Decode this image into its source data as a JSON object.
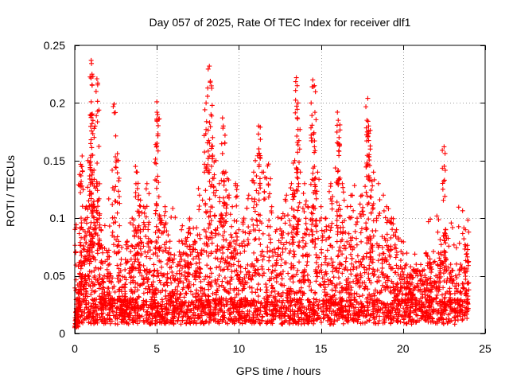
{
  "chart_data": {
    "type": "scatter",
    "title": "Day 057 of 2025, Rate Of TEC Index for receiver dlf1",
    "xlabel": "GPS time / hours",
    "ylabel": "ROTI / TECUs",
    "xlim": [
      0,
      25
    ],
    "ylim": [
      0,
      0.25
    ],
    "x_ticks": [
      "0",
      "5",
      "10",
      "15",
      "20",
      "25"
    ],
    "y_ticks": [
      "0",
      "0.05",
      "0.1",
      "0.15",
      "0.2",
      "0.25"
    ],
    "x_tick_values": [
      0,
      5,
      10,
      15,
      20,
      25
    ],
    "y_tick_values": [
      0,
      0.05,
      0.1,
      0.15,
      0.2,
      0.25
    ],
    "grid": true,
    "marker": "plus",
    "color": "#ff0000",
    "series": [
      {
        "values_note": "dense background points (sampled)",
        "points": [
          [
            0.1,
            0.012
          ],
          [
            0.2,
            0.03
          ],
          [
            0.3,
            0.052
          ],
          [
            0.35,
            0.13
          ],
          [
            0.4,
            0.145
          ],
          [
            0.45,
            0.154
          ],
          [
            0.5,
            0.09
          ],
          [
            0.6,
            0.06
          ],
          [
            0.7,
            0.11
          ],
          [
            0.8,
            0.15
          ],
          [
            0.9,
            0.12
          ],
          [
            1.0,
            0.237
          ],
          [
            1.05,
            0.225
          ],
          [
            1.0,
            0.201
          ],
          [
            1.0,
            0.19
          ],
          [
            1.05,
            0.182
          ],
          [
            1.1,
            0.13
          ],
          [
            1.2,
            0.11
          ],
          [
            1.3,
            0.21
          ],
          [
            1.35,
            0.221
          ],
          [
            1.4,
            0.13
          ],
          [
            1.5,
            0.1
          ],
          [
            1.6,
            0.09
          ],
          [
            1.7,
            0.07
          ],
          [
            1.8,
            0.05
          ],
          [
            2.0,
            0.07
          ],
          [
            2.2,
            0.05
          ],
          [
            2.4,
            0.199
          ],
          [
            2.6,
            0.156
          ],
          [
            2.65,
            0.15
          ],
          [
            2.8,
            0.06
          ],
          [
            3.0,
            0.04
          ],
          [
            3.2,
            0.08
          ],
          [
            3.5,
            0.1
          ],
          [
            3.7,
            0.145
          ],
          [
            3.8,
            0.14
          ],
          [
            3.9,
            0.12
          ],
          [
            4.0,
            0.09
          ],
          [
            4.2,
            0.11
          ],
          [
            4.4,
            0.13
          ],
          [
            4.6,
            0.08
          ],
          [
            4.8,
            0.05
          ],
          [
            5.0,
            0.201
          ],
          [
            5.05,
            0.19
          ],
          [
            5.0,
            0.185
          ],
          [
            5.2,
            0.1
          ],
          [
            5.5,
            0.11
          ],
          [
            5.8,
            0.08
          ],
          [
            6.0,
            0.05
          ],
          [
            6.3,
            0.06
          ],
          [
            6.5,
            0.09
          ],
          [
            6.8,
            0.08
          ],
          [
            7.0,
            0.1
          ],
          [
            7.3,
            0.08
          ],
          [
            7.6,
            0.12
          ],
          [
            7.9,
            0.14
          ],
          [
            8.0,
            0.2
          ],
          [
            8.1,
            0.213
          ],
          [
            8.2,
            0.232
          ],
          [
            8.25,
            0.218
          ],
          [
            8.3,
            0.19
          ],
          [
            8.4,
            0.17
          ],
          [
            8.6,
            0.15
          ],
          [
            8.8,
            0.13
          ],
          [
            9.0,
            0.187
          ],
          [
            9.05,
            0.18
          ],
          [
            9.2,
            0.14
          ],
          [
            9.4,
            0.12
          ],
          [
            9.6,
            0.11
          ],
          [
            9.8,
            0.13
          ],
          [
            10.0,
            0.09
          ],
          [
            10.3,
            0.1
          ],
          [
            10.6,
            0.12
          ],
          [
            10.9,
            0.14
          ],
          [
            11.0,
            0.15
          ],
          [
            11.2,
            0.18
          ],
          [
            11.3,
            0.179
          ],
          [
            11.5,
            0.14
          ],
          [
            11.8,
            0.147
          ],
          [
            12.0,
            0.11
          ],
          [
            12.3,
            0.09
          ],
          [
            12.6,
            0.1
          ],
          [
            12.9,
            0.12
          ],
          [
            13.2,
            0.13
          ],
          [
            13.4,
            0.15
          ],
          [
            13.5,
            0.222
          ],
          [
            13.55,
            0.215
          ],
          [
            13.6,
            0.2
          ],
          [
            13.6,
            0.177
          ],
          [
            13.7,
            0.16
          ],
          [
            14.0,
            0.13
          ],
          [
            14.2,
            0.11
          ],
          [
            14.4,
            0.2
          ],
          [
            14.5,
            0.22
          ],
          [
            14.6,
            0.215
          ],
          [
            14.6,
            0.162
          ],
          [
            14.8,
            0.14
          ],
          [
            15.0,
            0.11
          ],
          [
            15.3,
            0.1
          ],
          [
            15.6,
            0.13
          ],
          [
            16.0,
            0.192
          ],
          [
            16.05,
            0.185
          ],
          [
            16.1,
            0.17
          ],
          [
            16.3,
            0.13
          ],
          [
            16.6,
            0.11
          ],
          [
            16.9,
            0.12
          ],
          [
            17.2,
            0.1
          ],
          [
            17.5,
            0.12
          ],
          [
            17.8,
            0.185
          ],
          [
            17.85,
            0.204
          ],
          [
            17.9,
            0.18
          ],
          [
            18.0,
            0.16
          ],
          [
            18.2,
            0.14
          ],
          [
            18.5,
            0.13
          ],
          [
            18.8,
            0.12
          ],
          [
            19.0,
            0.11
          ],
          [
            19.3,
            0.1
          ],
          [
            19.6,
            0.09
          ],
          [
            19.9,
            0.08
          ],
          [
            20.2,
            0.06
          ],
          [
            20.5,
            0.05
          ],
          [
            20.8,
            0.06
          ],
          [
            21.1,
            0.05
          ],
          [
            21.4,
            0.07
          ],
          [
            21.7,
            0.06
          ],
          [
            22.0,
            0.05
          ],
          [
            22.3,
            0.07
          ],
          [
            22.5,
            0.162
          ],
          [
            22.52,
            0.133
          ],
          [
            22.6,
            0.09
          ],
          [
            22.9,
            0.06
          ],
          [
            23.2,
            0.05
          ],
          [
            23.5,
            0.06
          ],
          [
            23.8,
            0.09
          ],
          [
            24.0,
            0.088
          ]
        ]
      }
    ]
  }
}
